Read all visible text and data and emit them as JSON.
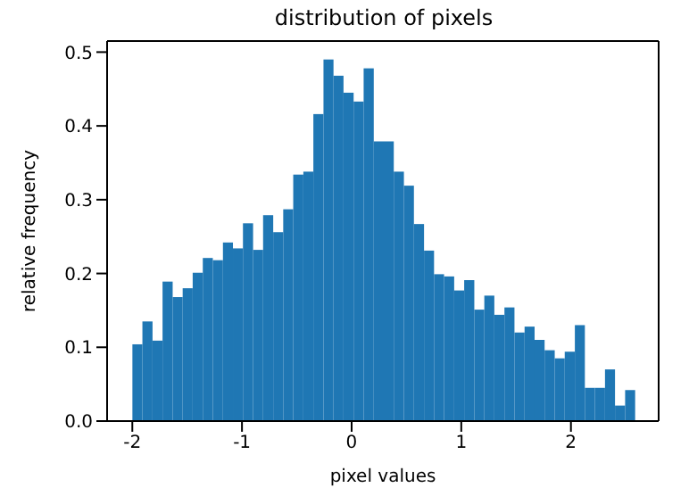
{
  "chart_data": {
    "type": "histogram",
    "title": "distribution of pixels",
    "xlabel": "pixel values",
    "ylabel": "relative frequency",
    "color": "#1f77b4",
    "bins": [
      -2,
      -1.909,
      -1.817,
      -1.726,
      -1.634,
      -1.543,
      -1.452,
      -1.36,
      -1.269,
      -1.177,
      -1.086,
      -0.995,
      -0.903,
      -0.812,
      -0.72,
      -0.629,
      -0.538,
      -0.446,
      -0.355,
      -0.263,
      -0.172,
      -0.081,
      0.011,
      0.102,
      0.194,
      0.285,
      0.376,
      0.468,
      0.559,
      0.651,
      0.742,
      0.833,
      0.925,
      1.016,
      1.108,
      1.199,
      1.29,
      1.382,
      1.473,
      1.565,
      1.656,
      1.747,
      1.839,
      1.93,
      2.022,
      2.113,
      2.204,
      2.296,
      2.387,
      2.479,
      2.57
    ],
    "values": [
      0.104,
      0.135,
      0.109,
      0.189,
      0.168,
      0.18,
      0.201,
      0.221,
      0.218,
      0.242,
      0.234,
      0.268,
      0.232,
      0.279,
      0.256,
      0.287,
      0.334,
      0.338,
      0.416,
      0.49,
      0.468,
      0.445,
      0.433,
      0.478,
      0.379,
      0.379,
      0.338,
      0.319,
      0.267,
      0.231,
      0.199,
      0.196,
      0.177,
      0.191,
      0.151,
      0.17,
      0.144,
      0.154,
      0.12,
      0.128,
      0.11,
      0.096,
      0.085,
      0.094,
      0.13,
      0.045,
      0.045,
      0.07,
      0.021,
      0.042
    ],
    "xlim": [
      -2.23,
      2.8
    ],
    "xticks": [
      -2,
      -1,
      0,
      1,
      2
    ],
    "ylim": [
      0,
      0.515
    ],
    "yticks": [
      {
        "value": 0,
        "label": "0.0"
      },
      {
        "value": 0.1,
        "label": "0.1"
      },
      {
        "value": 0.2,
        "label": "0.2"
      },
      {
        "value": 0.3,
        "label": "0.3"
      },
      {
        "value": 0.4,
        "label": "0.4"
      },
      {
        "value": 0.5,
        "label": "0.5"
      }
    ]
  }
}
